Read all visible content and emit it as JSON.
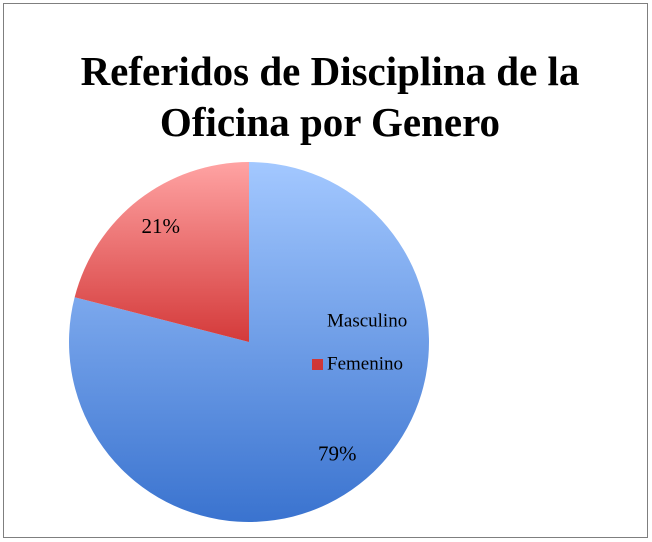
{
  "chart_data": {
    "type": "pie",
    "title": "Referidos de Disciplina de la Oficina por Genero",
    "categories": [
      "Masculino",
      "Femenino"
    ],
    "values": [
      79,
      21
    ],
    "value_labels": [
      "79%",
      "21%"
    ],
    "colors": [
      "#4f81bd",
      "#c0504d"
    ],
    "legend": "right"
  }
}
